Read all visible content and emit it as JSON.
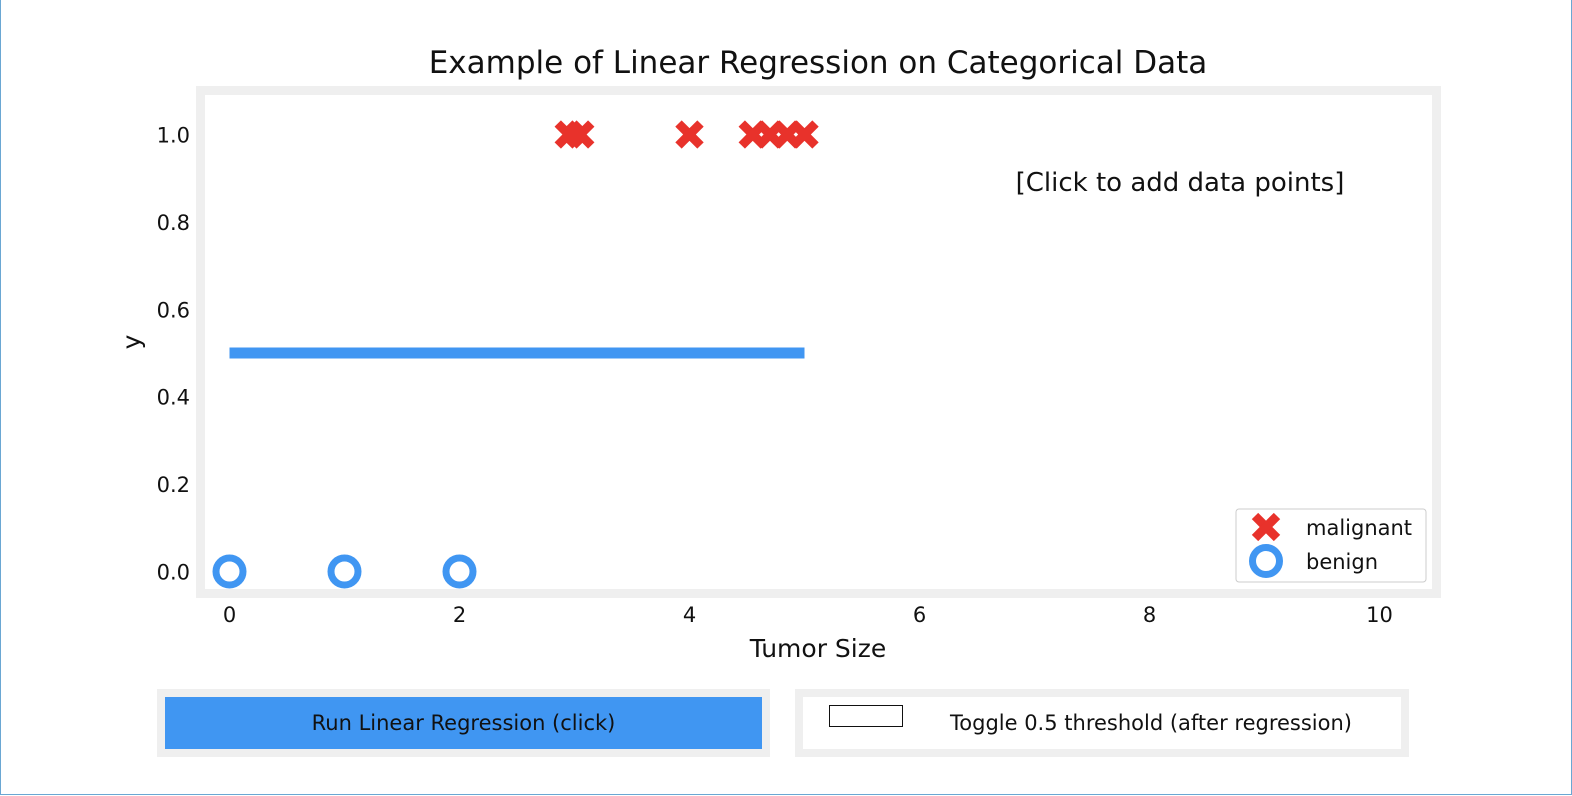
{
  "chart_data": {
    "type": "scatter",
    "title": "Example of Linear Regression on Categorical Data",
    "xlabel": "Tumor Size",
    "ylabel": "y",
    "xlim": [
      -0.3,
      10.5
    ],
    "ylim": [
      -0.05,
      1.1
    ],
    "xticks": [
      0,
      2,
      4,
      6,
      8,
      10
    ],
    "yticks": [
      0.0,
      0.2,
      0.4,
      0.6,
      0.8,
      1.0
    ],
    "grid": false,
    "legend": "lower-right",
    "annotation": "[Click to add data points]",
    "series": [
      {
        "name": "malignant",
        "marker": "x",
        "color": "#e8322b",
        "points": [
          [
            2.95,
            1.0
          ],
          [
            3.05,
            1.0
          ],
          [
            4.0,
            1.0
          ],
          [
            4.55,
            1.0
          ],
          [
            4.7,
            1.0
          ],
          [
            4.85,
            1.0
          ],
          [
            5.0,
            1.0
          ]
        ]
      },
      {
        "name": "benign",
        "marker": "circle",
        "color": "#4096f2",
        "points": [
          [
            0,
            0.0
          ],
          [
            1,
            0.0
          ],
          [
            2,
            0.0
          ]
        ]
      }
    ],
    "line": {
      "color": "#4096f2",
      "x": [
        0,
        5
      ],
      "y": [
        0.5,
        0.5
      ]
    }
  },
  "controls": {
    "run_button_label": "Run Linear Regression (click)",
    "toggle_label": "Toggle 0.5 threshold (after regression)",
    "toggle_checked": false
  }
}
